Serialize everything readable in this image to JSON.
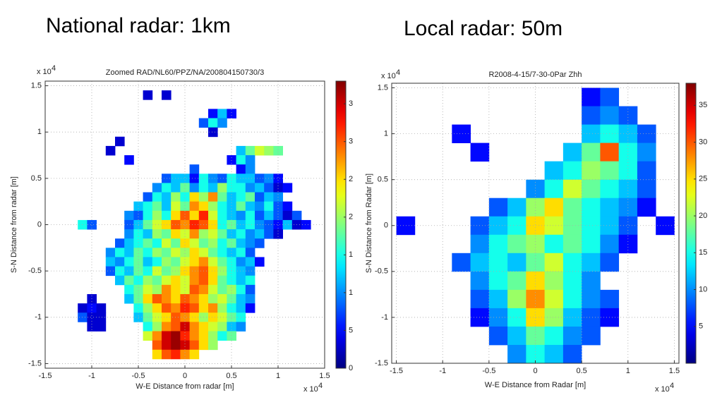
{
  "headings": [
    "National radar: 1km",
    "Local radar: 50m"
  ],
  "chart_data": [
    {
      "type": "heatmap",
      "title": "Zoomed RAD/NL60/PPZ/NA/200804150730/3",
      "x_label": "W-E Distance from radar [m]",
      "y_label": "S-N Distance from radar [m]",
      "x_multiplier": "x 10",
      "x_multiplier_exp": "4",
      "y_multiplier": "x 10",
      "y_multiplier_exp": "4",
      "colormap": "jet",
      "grid": true,
      "xlim": [
        -1.5,
        1.5
      ],
      "ylim": [
        -1.55,
        1.55
      ],
      "xticks": [
        -1.5,
        -1,
        -0.5,
        0,
        0.5,
        1,
        1.5
      ],
      "yticks": [
        -1.5,
        -1,
        -0.5,
        0,
        0.5,
        1,
        1.5
      ],
      "clim": [
        0,
        38
      ],
      "cticks": [
        0,
        5,
        {
          "value": 10,
          "label": "1"
        },
        {
          "value": 15,
          "label": "1"
        },
        {
          "value": 20,
          "label": "2"
        },
        {
          "value": 25,
          "label": "2"
        },
        {
          "value": 30,
          "label": "3"
        },
        {
          "value": 35,
          "label": "3"
        }
      ],
      "x": [
        -1.1,
        -1.0,
        -0.9,
        -0.8,
        -0.7,
        -0.6,
        -0.5,
        -0.4,
        -0.3,
        -0.2,
        -0.1,
        0,
        0.1,
        0.2,
        0.3,
        0.4,
        0.5,
        0.6,
        0.7,
        0.8,
        0.9,
        1.0,
        1.1,
        1.2,
        1.3,
        1.4
      ],
      "y": [
        1.4,
        1.3,
        1.2,
        1.1,
        1.0,
        0.9,
        0.8,
        0.7,
        0.6,
        0.5,
        0.4,
        0.3,
        0.2,
        0.1,
        0,
        -0.1,
        -0.2,
        -0.3,
        -0.4,
        -0.5,
        -0.6,
        -0.7,
        -0.8,
        -0.9,
        -1.0,
        -1.1,
        -1.2,
        -1.3,
        -1.4
      ],
      "z": [
        [
          null,
          null,
          null,
          null,
          null,
          null,
          null,
          3,
          null,
          3,
          null,
          null,
          null,
          null,
          null,
          null,
          null,
          null,
          null,
          null,
          null,
          null,
          null,
          null,
          null,
          null
        ],
        [
          null,
          null,
          null,
          null,
          null,
          null,
          null,
          null,
          null,
          null,
          null,
          null,
          null,
          null,
          null,
          null,
          null,
          null,
          null,
          null,
          null,
          null,
          null,
          null,
          null,
          null
        ],
        [
          null,
          null,
          null,
          null,
          null,
          null,
          null,
          null,
          null,
          null,
          null,
          null,
          null,
          null,
          5,
          12,
          5,
          null,
          null,
          null,
          null,
          null,
          null,
          null,
          null,
          null
        ],
        [
          null,
          null,
          null,
          null,
          null,
          null,
          null,
          null,
          null,
          null,
          null,
          null,
          null,
          8,
          15,
          10,
          null,
          null,
          null,
          null,
          null,
          null,
          null,
          null,
          null,
          null
        ],
        [
          null,
          null,
          null,
          null,
          null,
          null,
          null,
          null,
          null,
          null,
          null,
          null,
          null,
          null,
          3,
          null,
          null,
          null,
          null,
          null,
          null,
          null,
          null,
          null,
          null,
          null
        ],
        [
          null,
          null,
          null,
          null,
          3,
          null,
          null,
          null,
          null,
          null,
          null,
          null,
          null,
          null,
          null,
          null,
          null,
          null,
          null,
          null,
          null,
          null,
          null,
          null,
          null,
          null
        ],
        [
          null,
          null,
          null,
          3,
          null,
          null,
          null,
          null,
          null,
          null,
          null,
          null,
          null,
          null,
          null,
          null,
          null,
          12,
          18,
          22,
          20,
          18,
          null,
          null,
          null,
          null
        ],
        [
          null,
          null,
          null,
          null,
          null,
          5,
          null,
          null,
          null,
          null,
          null,
          null,
          null,
          null,
          null,
          null,
          5,
          15,
          10,
          null,
          null,
          null,
          null,
          null,
          null,
          null
        ],
        [
          null,
          null,
          null,
          null,
          null,
          null,
          null,
          null,
          null,
          null,
          null,
          null,
          8,
          null,
          null,
          null,
          null,
          5,
          10,
          null,
          null,
          null,
          null,
          null,
          null,
          null
        ],
        [
          null,
          null,
          null,
          null,
          null,
          null,
          null,
          null,
          null,
          8,
          12,
          12,
          5,
          15,
          10,
          8,
          15,
          12,
          12,
          8,
          10,
          5,
          null,
          null,
          null,
          null
        ],
        [
          null,
          null,
          null,
          null,
          null,
          null,
          null,
          null,
          10,
          15,
          12,
          18,
          10,
          15,
          12,
          20,
          15,
          15,
          10,
          12,
          8,
          3,
          5,
          null,
          null,
          null
        ],
        [
          null,
          null,
          null,
          null,
          null,
          null,
          null,
          8,
          15,
          12,
          20,
          15,
          25,
          20,
          28,
          18,
          12,
          15,
          18,
          8,
          12,
          10,
          null,
          null,
          null,
          null
        ],
        [
          null,
          null,
          null,
          null,
          null,
          null,
          12,
          15,
          18,
          12,
          22,
          18,
          28,
          25,
          20,
          15,
          12,
          18,
          12,
          10,
          15,
          8,
          5,
          null,
          null,
          null
        ],
        [
          null,
          null,
          null,
          null,
          null,
          10,
          8,
          15,
          20,
          15,
          25,
          30,
          25,
          32,
          22,
          15,
          12,
          10,
          15,
          8,
          12,
          8,
          3,
          8,
          null,
          null
        ],
        [
          15,
          8,
          null,
          null,
          null,
          8,
          12,
          18,
          22,
          25,
          30,
          28,
          32,
          30,
          25,
          15,
          18,
          12,
          15,
          10,
          8,
          5,
          12,
          3,
          5,
          null
        ],
        [
          null,
          null,
          null,
          null,
          null,
          10,
          15,
          12,
          20,
          18,
          25,
          22,
          28,
          20,
          22,
          18,
          12,
          15,
          10,
          12,
          8,
          3,
          null,
          null,
          null,
          null
        ],
        [
          null,
          null,
          null,
          null,
          8,
          12,
          15,
          18,
          15,
          22,
          18,
          25,
          22,
          18,
          20,
          15,
          18,
          12,
          10,
          8,
          null,
          null,
          null,
          null,
          null,
          null
        ],
        [
          null,
          null,
          null,
          10,
          15,
          12,
          18,
          15,
          20,
          18,
          22,
          20,
          25,
          22,
          18,
          15,
          12,
          15,
          8,
          null,
          null,
          null,
          null,
          null,
          null,
          null
        ],
        [
          null,
          null,
          null,
          12,
          10,
          15,
          18,
          12,
          15,
          20,
          18,
          22,
          25,
          28,
          22,
          18,
          15,
          10,
          12,
          5,
          null,
          null,
          null,
          null,
          null,
          null
        ],
        [
          null,
          null,
          null,
          8,
          15,
          12,
          18,
          15,
          22,
          18,
          20,
          25,
          28,
          30,
          25,
          20,
          15,
          12,
          10,
          null,
          null,
          null,
          null,
          null,
          null,
          null
        ],
        [
          null,
          null,
          null,
          null,
          12,
          18,
          15,
          20,
          18,
          22,
          25,
          22,
          28,
          30,
          25,
          18,
          15,
          12,
          15,
          null,
          null,
          null,
          null,
          null,
          null,
          null
        ],
        [
          null,
          null,
          null,
          null,
          null,
          15,
          18,
          22,
          20,
          28,
          25,
          22,
          30,
          28,
          22,
          18,
          20,
          15,
          8,
          null,
          null,
          null,
          null,
          null,
          null,
          null
        ],
        [
          null,
          3,
          null,
          null,
          null,
          12,
          18,
          25,
          30,
          28,
          25,
          30,
          28,
          25,
          20,
          22,
          18,
          12,
          10,
          null,
          null,
          null,
          null,
          null,
          null,
          null
        ],
        [
          3,
          5,
          3,
          null,
          null,
          null,
          15,
          20,
          25,
          30,
          28,
          32,
          30,
          25,
          28,
          20,
          15,
          12,
          5,
          null,
          null,
          null,
          null,
          null,
          null,
          null
        ],
        [
          8,
          3,
          3,
          null,
          null,
          null,
          12,
          18,
          22,
          25,
          30,
          28,
          25,
          20,
          25,
          22,
          18,
          15,
          null,
          null,
          null,
          null,
          null,
          null,
          null,
          null
        ],
        [
          null,
          3,
          3,
          null,
          null,
          null,
          null,
          15,
          20,
          28,
          30,
          35,
          28,
          25,
          22,
          20,
          12,
          10,
          null,
          null,
          null,
          null,
          null,
          null,
          null,
          null
        ],
        [
          null,
          null,
          null,
          null,
          null,
          null,
          null,
          22,
          28,
          35,
          37,
          32,
          28,
          25,
          20,
          15,
          18,
          null,
          null,
          null,
          null,
          null,
          null,
          null,
          null,
          null
        ],
        [
          null,
          null,
          null,
          null,
          null,
          null,
          null,
          null,
          30,
          35,
          37,
          35,
          30,
          25,
          20,
          null,
          null,
          null,
          null,
          null,
          null,
          null,
          null,
          null,
          null,
          null
        ],
        [
          null,
          null,
          null,
          null,
          null,
          null,
          null,
          null,
          25,
          30,
          32,
          28,
          25,
          null,
          null,
          null,
          null,
          null,
          null,
          null,
          null,
          null,
          null,
          null,
          null,
          null
        ]
      ]
    },
    {
      "type": "heatmap",
      "title": "R2008-4-15/7-30-0Par Zhh",
      "x_label": "W-E Distance from Radar [m]",
      "y_label": "S-N Distance from Radar [m]",
      "x_multiplier": "x 10",
      "x_multiplier_exp": "4",
      "y_multiplier": "x 10",
      "y_multiplier_exp": "4",
      "colormap": "jet",
      "grid": true,
      "xlim": [
        -1.55,
        1.55
      ],
      "ylim": [
        -1.5,
        1.55
      ],
      "xticks": [
        -1.5,
        -1,
        -0.5,
        0,
        0.5,
        1,
        1.5
      ],
      "yticks": [
        -1.5,
        -1,
        -0.5,
        0,
        0.5,
        1,
        1.5
      ],
      "clim": [
        0,
        38
      ],
      "cticks": [
        5,
        10,
        15,
        20,
        25,
        30,
        35
      ],
      "x": [
        -1.4,
        -1.2,
        -1.0,
        -0.8,
        -0.6,
        -0.4,
        -0.2,
        0,
        0.2,
        0.4,
        0.6,
        0.8,
        1.0,
        1.2,
        1.4
      ],
      "y": [
        1.4,
        1.2,
        1.0,
        0.8,
        0.6,
        0.4,
        0.2,
        0,
        -0.2,
        -0.4,
        -0.6,
        -0.8,
        -1.0,
        -1.2,
        -1.4
      ],
      "z": [
        [
          null,
          null,
          null,
          null,
          null,
          null,
          null,
          null,
          null,
          null,
          5,
          8,
          null,
          null,
          null
        ],
        [
          null,
          null,
          null,
          null,
          null,
          null,
          null,
          null,
          null,
          null,
          8,
          10,
          8,
          null,
          null
        ],
        [
          null,
          null,
          null,
          5,
          null,
          null,
          null,
          null,
          null,
          null,
          12,
          15,
          12,
          8,
          null
        ],
        [
          null,
          null,
          null,
          null,
          5,
          null,
          null,
          null,
          null,
          12,
          18,
          30,
          15,
          10,
          null
        ],
        [
          null,
          null,
          null,
          null,
          null,
          null,
          null,
          null,
          12,
          15,
          20,
          18,
          15,
          8,
          null
        ],
        [
          null,
          null,
          null,
          null,
          null,
          null,
          null,
          10,
          15,
          22,
          18,
          15,
          12,
          8,
          null
        ],
        [
          null,
          null,
          null,
          null,
          null,
          8,
          12,
          20,
          25,
          18,
          15,
          12,
          10,
          5,
          null
        ],
        [
          5,
          null,
          null,
          null,
          8,
          12,
          15,
          25,
          22,
          18,
          15,
          12,
          8,
          null,
          5
        ],
        [
          null,
          null,
          null,
          null,
          10,
          15,
          18,
          20,
          15,
          18,
          15,
          10,
          5,
          null,
          null
        ],
        [
          null,
          null,
          null,
          8,
          12,
          15,
          12,
          18,
          22,
          15,
          12,
          8,
          null,
          null,
          null
        ],
        [
          null,
          null,
          null,
          null,
          10,
          15,
          18,
          25,
          20,
          15,
          10,
          null,
          null,
          null,
          null
        ],
        [
          null,
          null,
          null,
          null,
          8,
          12,
          20,
          28,
          22,
          15,
          10,
          8,
          null,
          null,
          null
        ],
        [
          null,
          null,
          null,
          null,
          5,
          10,
          15,
          25,
          20,
          12,
          8,
          5,
          null,
          null,
          null
        ],
        [
          null,
          null,
          null,
          null,
          null,
          8,
          12,
          18,
          15,
          10,
          8,
          null,
          null,
          null,
          null
        ],
        [
          null,
          null,
          null,
          null,
          null,
          null,
          10,
          15,
          12,
          8,
          null,
          null,
          null,
          null,
          null
        ]
      ]
    }
  ]
}
